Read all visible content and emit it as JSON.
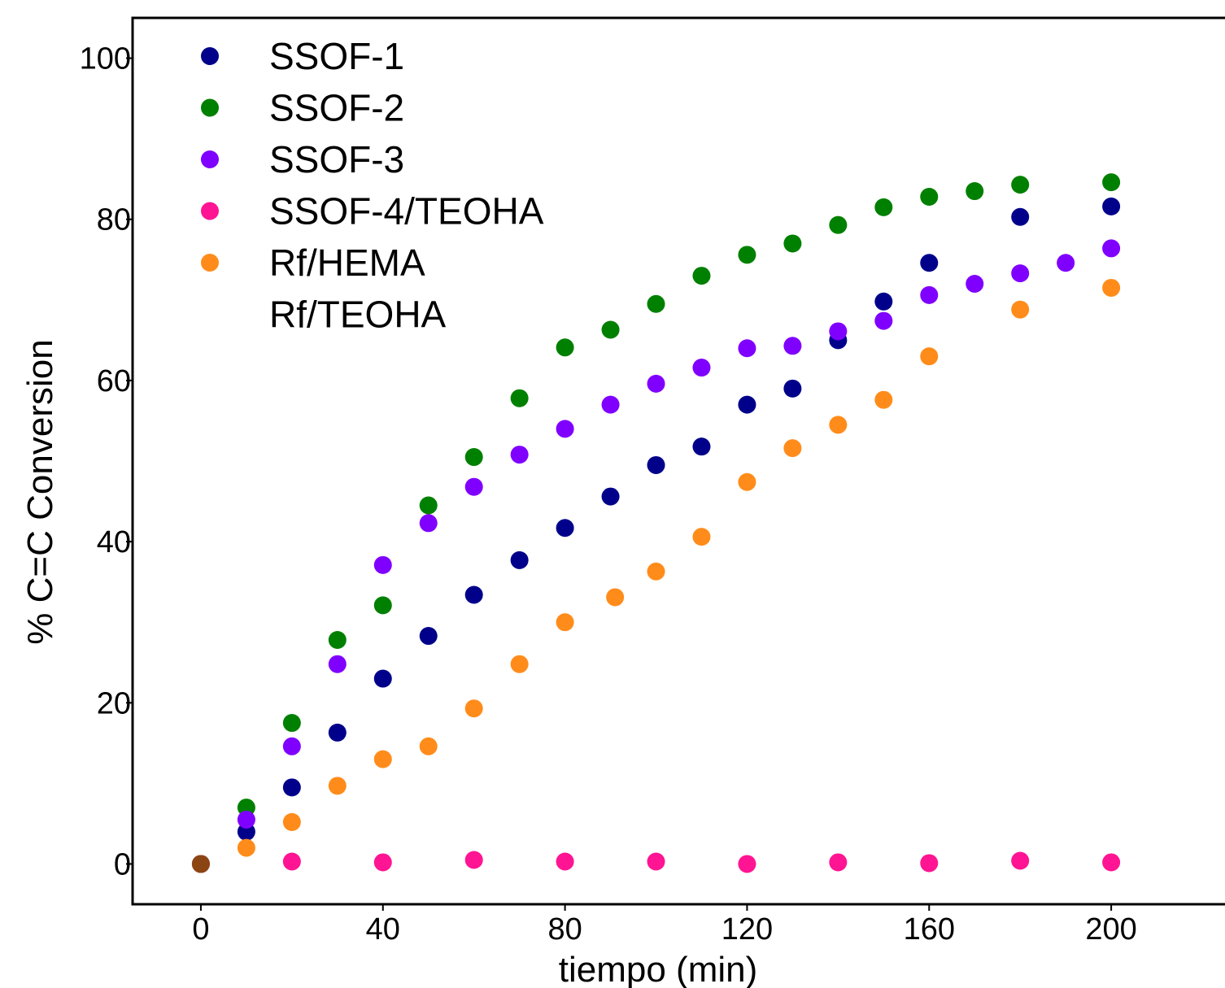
{
  "chart_data": {
    "type": "scatter",
    "title": "",
    "xlabel": "tiempo (min)",
    "ylabel": "% C=C Conversion",
    "xlim": [
      -15,
      225
    ],
    "ylim": [
      -5,
      105
    ],
    "xticks": [
      "0",
      "40",
      "80",
      "120",
      "160",
      "200"
    ],
    "yticks": [
      "0",
      "20",
      "40",
      "60",
      "80",
      "100"
    ],
    "xtick_values": [
      0,
      40,
      80,
      120,
      160,
      200
    ],
    "ytick_values": [
      0,
      20,
      40,
      60,
      80,
      100
    ],
    "grid": false,
    "legend_position": "top-left",
    "series": [
      {
        "name": "SSOF-1",
        "color": "#00008B",
        "x": [
          0,
          10,
          20,
          30,
          40,
          50,
          60,
          70,
          80,
          90,
          100,
          110,
          120,
          130,
          140,
          150,
          160,
          180,
          200
        ],
        "y": [
          0,
          4,
          9.5,
          16.3,
          23,
          28.3,
          33.4,
          37.7,
          41.7,
          45.6,
          49.5,
          51.8,
          57,
          59,
          65,
          69.8,
          74.6,
          80.3,
          81.6
        ]
      },
      {
        "name": "SSOF-2",
        "color": "#008000",
        "x": [
          0,
          10,
          20,
          30,
          40,
          50,
          60,
          70,
          80,
          90,
          100,
          110,
          120,
          130,
          140,
          150,
          160,
          170,
          180,
          200
        ],
        "y": [
          0,
          7,
          17.5,
          27.8,
          32.1,
          44.5,
          50.5,
          57.8,
          64.1,
          66.3,
          69.5,
          73,
          75.6,
          77,
          79.3,
          81.5,
          82.8,
          83.5,
          84.3,
          84.6
        ]
      },
      {
        "name": "SSOF-3",
        "color": "#8000FF",
        "x": [
          0,
          10,
          20,
          30,
          40,
          50,
          60,
          70,
          80,
          90,
          100,
          110,
          120,
          130,
          140,
          150,
          160,
          170,
          180,
          190,
          200
        ],
        "y": [
          0,
          5.5,
          14.6,
          24.8,
          37.1,
          42.3,
          46.8,
          50.8,
          54,
          57,
          59.6,
          61.6,
          64,
          64.3,
          66.1,
          67.4,
          70.6,
          72,
          73.3,
          74.6,
          76.4
        ]
      },
      {
        "name": "SSOF-4/TEOHA",
        "color": "#FF1493",
        "x": [
          0,
          20,
          40,
          60,
          80,
          100,
          120,
          140,
          160,
          180,
          200
        ],
        "y": [
          0,
          0.3,
          0.2,
          0.5,
          0.3,
          0.3,
          0,
          0.2,
          0.1,
          0.4,
          0.2
        ]
      },
      {
        "name": "Rf/HEMA",
        "color": "#FF8C1A",
        "x": [
          0,
          10,
          20,
          30,
          40,
          50,
          60,
          70,
          80,
          91,
          100,
          110,
          120,
          130,
          140,
          150,
          160,
          180,
          200
        ],
        "y": [
          0,
          2,
          5.2,
          9.7,
          13,
          14.6,
          19.3,
          24.8,
          30,
          33.1,
          36.3,
          40.6,
          47.4,
          51.6,
          54.5,
          57.6,
          63,
          68.8,
          71.5
        ]
      },
      {
        "name": "Rf/TEOHA",
        "color": "#8B4513",
        "x": [
          0
        ],
        "y": [
          0
        ]
      }
    ]
  }
}
